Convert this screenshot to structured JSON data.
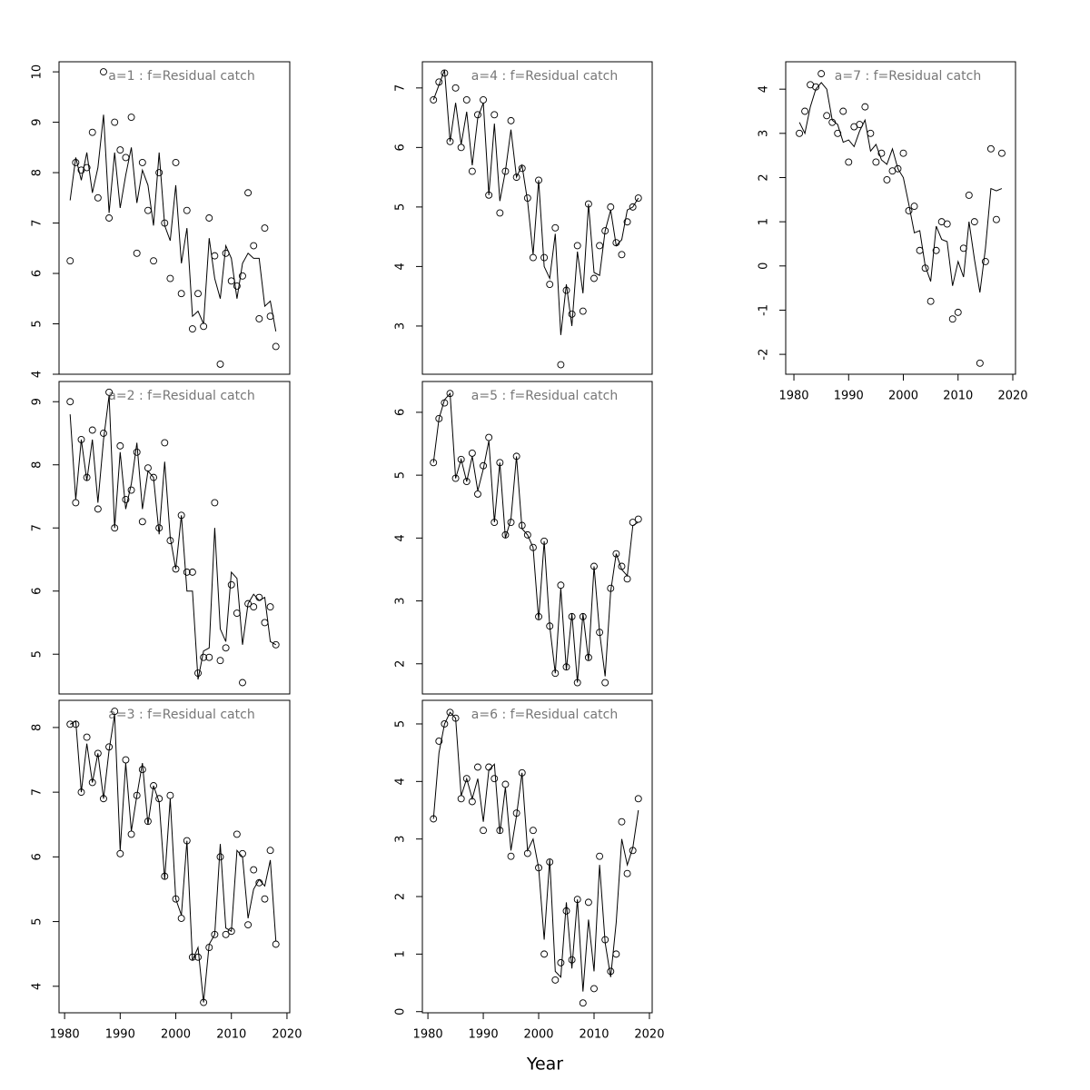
{
  "xlabel": "Year",
  "chart_data": [
    {
      "type": "scatter",
      "title": "a=1  :  f=Residual catch",
      "x": [
        1981,
        1982,
        1983,
        1984,
        1985,
        1986,
        1987,
        1988,
        1989,
        1990,
        1991,
        1992,
        1993,
        1994,
        1995,
        1996,
        1997,
        1998,
        1999,
        2000,
        2001,
        2002,
        2003,
        2004,
        2005,
        2006,
        2007,
        2008,
        2009,
        2010,
        2011,
        2012,
        2013,
        2014,
        2015,
        2016,
        2017,
        2018
      ],
      "values": [
        6.25,
        8.2,
        8.05,
        8.1,
        8.8,
        7.5,
        10.0,
        7.1,
        9.0,
        8.45,
        8.3,
        9.1,
        6.4,
        8.2,
        7.25,
        6.25,
        8.0,
        7.0,
        5.9,
        8.2,
        5.6,
        7.25,
        4.9,
        5.6,
        4.95,
        7.1,
        6.35,
        4.2,
        6.4,
        5.85,
        5.75,
        5.95,
        7.6,
        6.55,
        5.1,
        6.9,
        5.15,
        4.55
      ],
      "fitted": [
        7.45,
        8.3,
        7.85,
        8.4,
        7.6,
        8.1,
        9.15,
        7.2,
        8.4,
        7.3,
        7.95,
        8.5,
        7.4,
        8.05,
        7.75,
        6.95,
        8.4,
        6.95,
        6.65,
        7.75,
        6.2,
        6.9,
        5.15,
        5.25,
        5.0,
        6.7,
        5.9,
        5.5,
        6.55,
        6.3,
        5.5,
        6.2,
        6.4,
        6.3,
        6.3,
        5.35,
        5.45,
        4.85
      ],
      "color": "#000000",
      "xlim": [
        1979.0,
        2020.5
      ],
      "ylim": [
        4.0,
        10.2
      ],
      "yticks": [
        4,
        5,
        6,
        7,
        8,
        9,
        10
      ]
    },
    {
      "type": "scatter",
      "title": "a=2  :  f=Residual catch",
      "x": [
        1981,
        1982,
        1983,
        1984,
        1985,
        1986,
        1987,
        1988,
        1989,
        1990,
        1991,
        1992,
        1993,
        1994,
        1995,
        1996,
        1997,
        1998,
        1999,
        2000,
        2001,
        2002,
        2003,
        2004,
        2005,
        2006,
        2007,
        2008,
        2009,
        2010,
        2011,
        2012,
        2013,
        2014,
        2015,
        2016,
        2017,
        2018
      ],
      "values": [
        9.0,
        7.4,
        8.4,
        7.8,
        8.55,
        7.3,
        8.5,
        9.15,
        7.0,
        8.3,
        7.45,
        7.6,
        8.2,
        7.1,
        7.95,
        7.8,
        7.0,
        8.35,
        6.8,
        6.35,
        7.2,
        6.3,
        6.3,
        4.7,
        4.95,
        4.95,
        7.4,
        4.9,
        5.1,
        6.1,
        5.65,
        4.55,
        5.8,
        5.75,
        5.9,
        5.5,
        5.75,
        5.15
      ],
      "fitted": [
        8.8,
        7.45,
        8.4,
        7.75,
        8.4,
        7.4,
        8.4,
        9.1,
        7.0,
        8.2,
        7.3,
        7.7,
        8.35,
        7.3,
        7.9,
        7.8,
        6.9,
        8.05,
        6.85,
        6.35,
        7.2,
        6.0,
        6.0,
        4.6,
        5.05,
        5.1,
        7.0,
        5.4,
        5.2,
        6.3,
        6.2,
        5.15,
        5.8,
        5.95,
        5.85,
        5.9,
        5.2,
        5.15
      ],
      "color": "#000000",
      "xlim": [
        1979.0,
        2020.5
      ],
      "ylim": [
        4.37,
        9.32
      ],
      "yticks": [
        5,
        6,
        7,
        8,
        9
      ]
    },
    {
      "type": "scatter",
      "title": "a=3  :  f=Residual catch",
      "x": [
        1981,
        1982,
        1983,
        1984,
        1985,
        1986,
        1987,
        1988,
        1989,
        1990,
        1991,
        1992,
        1993,
        1994,
        1995,
        1996,
        1997,
        1998,
        1999,
        2000,
        2001,
        2002,
        2003,
        2004,
        2005,
        2006,
        2007,
        2008,
        2009,
        2010,
        2011,
        2012,
        2013,
        2014,
        2015,
        2016,
        2017,
        2018
      ],
      "values": [
        8.05,
        8.05,
        7.0,
        7.85,
        7.15,
        7.6,
        6.9,
        7.7,
        8.25,
        6.05,
        7.5,
        6.35,
        6.95,
        7.35,
        6.55,
        7.1,
        6.9,
        5.7,
        6.95,
        5.35,
        5.05,
        6.25,
        4.45,
        4.45,
        3.75,
        4.6,
        4.8,
        6.0,
        4.8,
        4.85,
        6.35,
        6.05,
        4.95,
        5.8,
        5.6,
        5.35,
        6.1,
        4.65
      ],
      "fitted": [
        8.05,
        8.1,
        7.0,
        7.75,
        7.15,
        7.6,
        6.9,
        7.65,
        8.2,
        6.1,
        7.45,
        6.4,
        6.95,
        7.45,
        6.5,
        7.1,
        6.85,
        5.65,
        6.9,
        5.35,
        5.1,
        6.25,
        4.4,
        4.6,
        3.75,
        4.65,
        4.8,
        6.2,
        4.9,
        4.85,
        6.1,
        6.0,
        5.05,
        5.5,
        5.65,
        5.55,
        5.95,
        4.7
      ],
      "color": "#000000",
      "xlim": [
        1979.0,
        2020.5
      ],
      "ylim": [
        3.59,
        8.42
      ],
      "yticks": [
        4,
        5,
        6,
        7,
        8
      ],
      "xticks": [
        1980,
        1990,
        2000,
        2010,
        2020
      ]
    },
    {
      "type": "scatter",
      "title": "a=4  :  f=Residual catch",
      "x": [
        1981,
        1982,
        1983,
        1984,
        1985,
        1986,
        1987,
        1988,
        1989,
        1990,
        1991,
        1992,
        1993,
        1994,
        1995,
        1996,
        1997,
        1998,
        1999,
        2000,
        2001,
        2002,
        2003,
        2004,
        2005,
        2006,
        2007,
        2008,
        2009,
        2010,
        2011,
        2012,
        2013,
        2014,
        2015,
        2016,
        2017,
        2018
      ],
      "values": [
        6.8,
        7.1,
        7.25,
        6.1,
        7.0,
        6.0,
        6.8,
        5.6,
        6.55,
        6.8,
        5.2,
        6.55,
        4.9,
        5.6,
        6.45,
        5.5,
        5.65,
        5.15,
        4.15,
        5.45,
        4.15,
        3.7,
        4.65,
        2.35,
        3.6,
        3.2,
        4.35,
        3.25,
        5.05,
        3.8,
        4.35,
        4.6,
        5.0,
        4.4,
        4.2,
        4.75,
        5.0,
        5.15
      ],
      "fitted": [
        6.8,
        7.05,
        7.3,
        6.1,
        6.75,
        6.05,
        6.6,
        5.7,
        6.5,
        6.75,
        5.2,
        6.4,
        5.1,
        5.6,
        6.3,
        5.5,
        5.7,
        5.1,
        4.2,
        5.45,
        4.0,
        3.8,
        4.55,
        2.85,
        3.7,
        3.0,
        4.25,
        3.55,
        5.05,
        3.9,
        3.85,
        4.6,
        4.95,
        4.35,
        4.45,
        4.95,
        5.0,
        5.15
      ],
      "color": "#000000",
      "xlim": [
        1979.0,
        2020.5
      ],
      "ylim": [
        2.19,
        7.44
      ],
      "yticks": [
        3,
        4,
        5,
        6,
        7
      ]
    },
    {
      "type": "scatter",
      "title": "a=5  :  f=Residual catch",
      "x": [
        1981,
        1982,
        1983,
        1984,
        1985,
        1986,
        1987,
        1988,
        1989,
        1990,
        1991,
        1992,
        1993,
        1994,
        1995,
        1996,
        1997,
        1998,
        1999,
        2000,
        2001,
        2002,
        2003,
        2004,
        2005,
        2006,
        2007,
        2008,
        2009,
        2010,
        2011,
        2012,
        2013,
        2014,
        2015,
        2016,
        2017,
        2018
      ],
      "values": [
        5.2,
        5.9,
        6.15,
        6.3,
        4.95,
        5.25,
        4.9,
        5.35,
        4.7,
        5.15,
        5.6,
        4.25,
        5.2,
        4.05,
        4.25,
        5.3,
        4.2,
        4.05,
        3.85,
        2.75,
        3.95,
        2.6,
        1.85,
        3.25,
        1.95,
        2.75,
        1.7,
        2.75,
        2.1,
        3.55,
        2.5,
        1.7,
        3.2,
        3.75,
        3.55,
        3.35,
        4.25,
        4.3
      ],
      "fitted": [
        5.2,
        5.9,
        6.2,
        6.3,
        4.95,
        5.25,
        4.9,
        5.3,
        4.75,
        5.1,
        5.55,
        4.25,
        5.2,
        4.0,
        4.3,
        5.3,
        4.15,
        4.05,
        3.85,
        2.7,
        3.95,
        2.6,
        1.85,
        3.2,
        1.9,
        2.8,
        1.7,
        2.8,
        2.05,
        3.55,
        2.5,
        1.8,
        3.15,
        3.75,
        3.5,
        3.4,
        4.2,
        4.25
      ],
      "color": "#000000",
      "xlim": [
        1979.0,
        2020.5
      ],
      "ylim": [
        1.52,
        6.49
      ],
      "yticks": [
        2,
        3,
        4,
        5,
        6
      ]
    },
    {
      "type": "scatter",
      "title": "a=6  :  f=Residual catch",
      "x": [
        1981,
        1982,
        1983,
        1984,
        1985,
        1986,
        1987,
        1988,
        1989,
        1990,
        1991,
        1992,
        1993,
        1994,
        1995,
        1996,
        1997,
        1998,
        1999,
        2000,
        2001,
        2002,
        2003,
        2004,
        2005,
        2006,
        2007,
        2008,
        2009,
        2010,
        2011,
        2012,
        2013,
        2014,
        2015,
        2016,
        2017,
        2018
      ],
      "values": [
        3.35,
        4.7,
        5.0,
        5.2,
        5.1,
        3.7,
        4.05,
        3.65,
        4.25,
        3.15,
        4.25,
        4.05,
        3.15,
        3.95,
        2.7,
        3.45,
        4.15,
        2.75,
        3.15,
        2.5,
        1.0,
        2.6,
        0.55,
        0.85,
        1.75,
        0.9,
        1.95,
        0.15,
        1.9,
        0.4,
        2.7,
        1.25,
        0.7,
        1.0,
        3.3,
        2.4,
        2.8,
        3.7
      ],
      "fitted": [
        3.35,
        4.5,
        5.0,
        5.2,
        5.1,
        3.75,
        4.05,
        3.7,
        4.05,
        3.3,
        4.2,
        4.3,
        3.1,
        3.9,
        2.8,
        3.4,
        4.15,
        2.8,
        3.0,
        2.5,
        1.25,
        2.65,
        0.7,
        0.6,
        1.9,
        0.75,
        1.95,
        0.35,
        1.6,
        0.7,
        2.55,
        1.2,
        0.6,
        1.55,
        3.0,
        2.55,
        2.85,
        3.5
      ],
      "color": "#000000",
      "xlim": [
        1979.0,
        2020.5
      ],
      "ylim": [
        -0.02,
        5.41
      ],
      "yticks": [
        0,
        1,
        2,
        3,
        4,
        5
      ],
      "xticks": [
        1980,
        1990,
        2000,
        2010,
        2020
      ]
    },
    {
      "type": "scatter",
      "title": "a=7  :  f=Residual catch",
      "x": [
        1981,
        1982,
        1983,
        1984,
        1985,
        1986,
        1987,
        1988,
        1989,
        1990,
        1991,
        1992,
        1993,
        1994,
        1995,
        1996,
        1997,
        1998,
        1999,
        2000,
        2001,
        2002,
        2003,
        2004,
        2005,
        2006,
        2007,
        2008,
        2009,
        2010,
        2011,
        2012,
        2013,
        2014,
        2015,
        2016,
        2017,
        2018
      ],
      "values": [
        3.0,
        3.5,
        4.1,
        4.05,
        4.35,
        3.4,
        3.25,
        3.0,
        3.5,
        2.35,
        3.15,
        3.2,
        3.6,
        3.0,
        2.35,
        2.55,
        1.95,
        2.15,
        2.2,
        2.55,
        1.25,
        1.35,
        0.35,
        -0.05,
        -0.8,
        0.35,
        1.0,
        0.95,
        -1.2,
        -1.05,
        0.4,
        1.6,
        1.0,
        -2.2,
        0.1,
        2.65,
        1.05,
        2.55
      ],
      "fitted": [
        3.25,
        3.0,
        3.6,
        4.0,
        4.15,
        4.0,
        3.3,
        3.2,
        2.8,
        2.85,
        2.7,
        3.05,
        3.3,
        2.6,
        2.75,
        2.4,
        2.3,
        2.65,
        2.2,
        2.0,
        1.4,
        0.75,
        0.8,
        0.0,
        -0.35,
        0.9,
        0.6,
        0.55,
        -0.45,
        0.1,
        -0.25,
        1.0,
        0.15,
        -0.6,
        0.4,
        1.75,
        1.7,
        1.75
      ],
      "color": "#000000",
      "xlim": [
        1978.5,
        2020.5
      ],
      "ylim": [
        -2.45,
        4.62
      ],
      "yticks": [
        -2,
        -1,
        0,
        1,
        2,
        3,
        4
      ],
      "xticks": [
        1980,
        1990,
        2000,
        2010,
        2020
      ]
    }
  ]
}
